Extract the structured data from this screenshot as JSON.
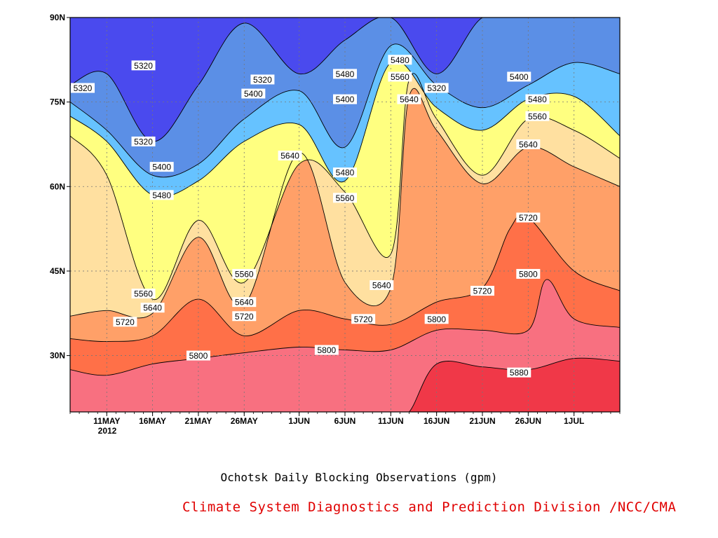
{
  "chart_data": {
    "type": "heatmap",
    "title": "Ochotsk Daily Blocking Observations (gpm)",
    "credit": "Climate System Diagnostics and Prediction Division /NCC/CMA",
    "xlabel": "",
    "ylabel": "",
    "year_label": "2012",
    "x_range": [
      "2012-05-07",
      "2012-07-06"
    ],
    "ylim": [
      20,
      90
    ],
    "y_ticks": [
      {
        "value": 30,
        "label": "30N"
      },
      {
        "value": 45,
        "label": "45N"
      },
      {
        "value": 60,
        "label": "60N"
      },
      {
        "value": 75,
        "label": "75N"
      },
      {
        "value": 90,
        "label": "90N"
      }
    ],
    "x_ticks": [
      {
        "date": "2012-05-11",
        "label": "11MAY"
      },
      {
        "date": "2012-05-16",
        "label": "16MAY"
      },
      {
        "date": "2012-05-21",
        "label": "21MAY"
      },
      {
        "date": "2012-05-26",
        "label": "26MAY"
      },
      {
        "date": "2012-06-01",
        "label": "1JUN"
      },
      {
        "date": "2012-06-06",
        "label": "6JUN"
      },
      {
        "date": "2012-06-11",
        "label": "11JUN"
      },
      {
        "date": "2012-06-16",
        "label": "16JUN"
      },
      {
        "date": "2012-06-21",
        "label": "21JUN"
      },
      {
        "date": "2012-06-26",
        "label": "26JUN"
      },
      {
        "date": "2012-07-01",
        "label": "1JUL"
      }
    ],
    "grid": "dotted",
    "contour_levels": [
      5240,
      5320,
      5400,
      5480,
      5560,
      5640,
      5720,
      5800,
      5880
    ],
    "fill_colors": [
      "#1515e0",
      "#4a4aee",
      "#5b8fe6",
      "#66c2ff",
      "#ffff80",
      "#ffe0a0",
      "#ffa068",
      "#ff7048",
      "#f87080",
      "#f03848"
    ],
    "contours": [
      {
        "level": 5880,
        "date": [
          "2012-05-07",
          "2012-05-11",
          "2012-05-16",
          "2012-05-21",
          "2012-05-26",
          "2012-06-01",
          "2012-06-06",
          "2012-06-11",
          "2012-06-13",
          "2012-06-16",
          "2012-06-21",
          "2012-06-26",
          "2012-07-01",
          "2012-07-06"
        ],
        "lat": [
          20,
          20,
          20,
          20,
          20,
          20,
          20,
          20,
          20,
          28.5,
          28,
          27.5,
          29.5,
          29
        ]
      },
      {
        "level": 5800,
        "date": [
          "2012-05-07",
          "2012-05-11",
          "2012-05-16",
          "2012-05-21",
          "2012-05-26",
          "2012-06-01",
          "2012-06-06",
          "2012-06-11",
          "2012-06-16",
          "2012-06-21",
          "2012-06-26",
          "2012-06-28",
          "2012-07-01",
          "2012-07-06"
        ],
        "lat": [
          27.5,
          26.5,
          28.5,
          29.5,
          30.5,
          31.5,
          31,
          31,
          34.5,
          34.5,
          34.5,
          43.5,
          36.5,
          35
        ]
      },
      {
        "level": 5720,
        "date": [
          "2012-05-07",
          "2012-05-11",
          "2012-05-16",
          "2012-05-21",
          "2012-05-26",
          "2012-06-01",
          "2012-06-06",
          "2012-06-11",
          "2012-06-16",
          "2012-06-21",
          "2012-06-24",
          "2012-06-26",
          "2012-07-01",
          "2012-07-06"
        ],
        "lat": [
          33,
          32.5,
          33.5,
          40,
          33.5,
          38,
          36.5,
          35.5,
          39.5,
          42,
          52.5,
          54.5,
          45,
          41.5
        ]
      },
      {
        "level": 5640,
        "date": [
          "2012-05-07",
          "2012-05-11",
          "2012-05-16",
          "2012-05-21",
          "2012-05-26",
          "2012-06-01",
          "2012-06-06",
          "2012-06-11",
          "2012-06-13",
          "2012-06-16",
          "2012-06-21",
          "2012-06-26",
          "2012-07-01",
          "2012-07-06"
        ],
        "lat": [
          37,
          38,
          37.5,
          51,
          39,
          66,
          43,
          42,
          76,
          70,
          60.5,
          67,
          63.5,
          60
        ]
      },
      {
        "level": 5560,
        "date": [
          "2012-05-07",
          "2012-05-11",
          "2012-05-16",
          "2012-05-21",
          "2012-05-26",
          "2012-06-01",
          "2012-06-06",
          "2012-06-11",
          "2012-06-13",
          "2012-06-16",
          "2012-06-21",
          "2012-06-26",
          "2012-07-01",
          "2012-07-06"
        ],
        "lat": [
          69,
          62,
          40,
          54,
          43,
          64,
          59,
          48,
          79,
          72,
          62,
          72,
          70,
          65
        ]
      },
      {
        "level": 5480,
        "date": [
          "2012-05-07",
          "2012-05-11",
          "2012-05-16",
          "2012-05-21",
          "2012-05-26",
          "2012-06-01",
          "2012-06-06",
          "2012-06-11",
          "2012-06-16",
          "2012-06-21",
          "2012-06-26",
          "2012-07-01",
          "2012-07-06"
        ],
        "lat": [
          72.5,
          68,
          58.5,
          61,
          68,
          71,
          61,
          82,
          74,
          70,
          75.5,
          76,
          69
        ]
      },
      {
        "level": 5400,
        "date": [
          "2012-05-07",
          "2012-05-11",
          "2012-05-16",
          "2012-05-21",
          "2012-05-26",
          "2012-06-01",
          "2012-06-06",
          "2012-06-11",
          "2012-06-16",
          "2012-06-21",
          "2012-06-26",
          "2012-07-01",
          "2012-07-06"
        ],
        "lat": [
          75,
          70,
          62,
          64,
          72,
          77,
          67,
          85,
          78,
          74,
          78,
          82,
          80
        ]
      },
      {
        "level": 5320,
        "date": [
          "2012-05-07",
          "2012-05-11",
          "2012-05-16",
          "2012-05-21",
          "2012-05-26",
          "2012-06-01",
          "2012-06-06",
          "2012-06-11",
          "2012-06-16",
          "2012-06-21",
          "2012-06-26",
          "2012-07-01",
          "2012-07-06"
        ],
        "lat": [
          78,
          80,
          68,
          78,
          89,
          80,
          86,
          90,
          80,
          90,
          90,
          90,
          90
        ]
      }
    ],
    "labels": [
      {
        "text": "5320",
        "date": "2012-05-07",
        "lat": 77.5
      },
      {
        "text": "5320",
        "date": "2012-05-15",
        "lat": 81.5
      },
      {
        "text": "5320",
        "date": "2012-05-15",
        "lat": 68
      },
      {
        "text": "5320",
        "date": "2012-05-28",
        "lat": 79
      },
      {
        "text": "5320",
        "date": "2012-06-16",
        "lat": 77.5
      },
      {
        "text": "5400",
        "date": "2012-05-17",
        "lat": 63.5
      },
      {
        "text": "5400",
        "date": "2012-05-27",
        "lat": 76.5
      },
      {
        "text": "5400",
        "date": "2012-06-06",
        "lat": 75.5
      },
      {
        "text": "5400",
        "date": "2012-06-25",
        "lat": 79.5
      },
      {
        "text": "5480",
        "date": "2012-05-17",
        "lat": 58.5
      },
      {
        "text": "5480",
        "date": "2012-06-06",
        "lat": 80
      },
      {
        "text": "5480",
        "date": "2012-06-06",
        "lat": 62.5
      },
      {
        "text": "5480",
        "date": "2012-06-12",
        "lat": 82.5
      },
      {
        "text": "5480",
        "date": "2012-06-27",
        "lat": 75.5
      },
      {
        "text": "5560",
        "date": "2012-06-12",
        "lat": 79.5
      },
      {
        "text": "5560",
        "date": "2012-06-06",
        "lat": 58
      },
      {
        "text": "5560",
        "date": "2012-06-27",
        "lat": 72.5
      },
      {
        "text": "5560",
        "date": "2012-05-15",
        "lat": 41
      },
      {
        "text": "5560",
        "date": "2012-05-26",
        "lat": 44.5
      },
      {
        "text": "5640",
        "date": "2012-05-31",
        "lat": 65.5
      },
      {
        "text": "5640",
        "date": "2012-06-13",
        "lat": 75.5
      },
      {
        "text": "5640",
        "date": "2012-06-26",
        "lat": 67.5
      },
      {
        "text": "5640",
        "date": "2012-05-16",
        "lat": 38.5
      },
      {
        "text": "5640",
        "date": "2012-05-26",
        "lat": 39.5
      },
      {
        "text": "5640",
        "date": "2012-06-10",
        "lat": 42.5
      },
      {
        "text": "5720",
        "date": "2012-05-13",
        "lat": 36
      },
      {
        "text": "5720",
        "date": "2012-05-26",
        "lat": 37
      },
      {
        "text": "5720",
        "date": "2012-06-08",
        "lat": 36.5
      },
      {
        "text": "5720",
        "date": "2012-06-21",
        "lat": 41.5
      },
      {
        "text": "5720",
        "date": "2012-06-26",
        "lat": 54.5
      },
      {
        "text": "5800",
        "date": "2012-05-21",
        "lat": 30
      },
      {
        "text": "5800",
        "date": "2012-06-04",
        "lat": 31
      },
      {
        "text": "5800",
        "date": "2012-06-16",
        "lat": 36.5
      },
      {
        "text": "5800",
        "date": "2012-06-26",
        "lat": 44.5
      },
      {
        "text": "5880",
        "date": "2012-06-25",
        "lat": 27
      }
    ]
  }
}
